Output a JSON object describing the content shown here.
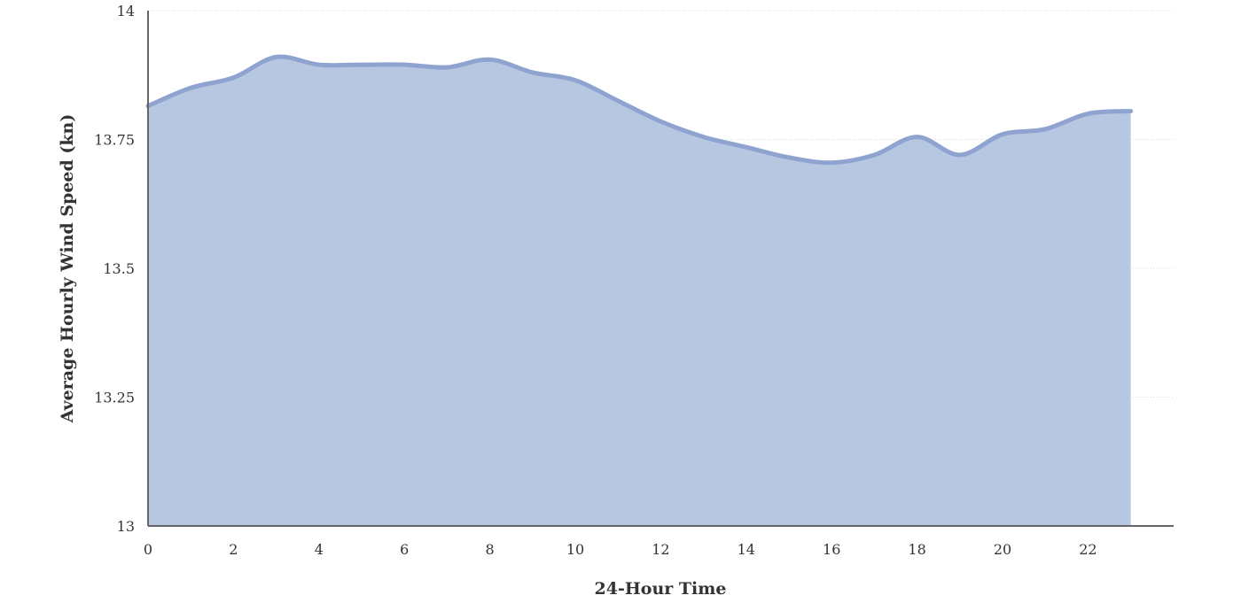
{
  "chart_data": {
    "type": "area",
    "xlabel": "24-Hour Time",
    "ylabel": "Average Hourly Wind Speed (kn)",
    "xlim": [
      0,
      24
    ],
    "ylim": [
      13,
      14
    ],
    "x_ticks": [
      0,
      2,
      4,
      6,
      8,
      10,
      12,
      14,
      16,
      18,
      20,
      22
    ],
    "y_ticks": [
      13,
      13.25,
      13.5,
      13.75,
      14
    ],
    "y_tick_labels": [
      "13",
      "13.25",
      "13.5",
      "13.75",
      "14"
    ],
    "grid": true,
    "colors": {
      "fill": "#b7c7e1",
      "line": "#8ea3cf"
    },
    "series": [
      {
        "x": [
          0,
          1,
          2,
          3,
          4,
          5,
          6,
          7,
          8,
          9,
          10,
          11,
          12,
          13,
          14,
          15,
          16,
          17,
          18,
          19,
          20,
          21,
          22,
          23
        ],
        "values": [
          13.815,
          13.85,
          13.87,
          13.91,
          13.895,
          13.895,
          13.895,
          13.89,
          13.905,
          13.88,
          13.865,
          13.825,
          13.785,
          13.755,
          13.735,
          13.715,
          13.705,
          13.72,
          13.755,
          13.72,
          13.76,
          13.77,
          13.8,
          13.805
        ]
      }
    ]
  }
}
